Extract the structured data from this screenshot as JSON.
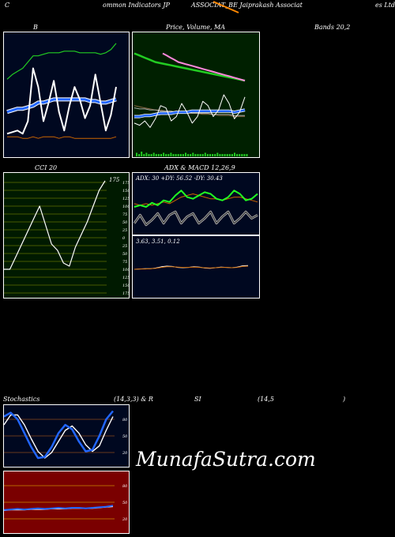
{
  "header": {
    "left": "C",
    "mid1": "ommon  Indicators JP",
    "mid2": "ASSOCIAT_BE Jaiprakash Associat",
    "right": "es Ltd."
  },
  "titles": {
    "bands_left": "B",
    "price_ma": "Price,  Volume,  MA",
    "bands_right": "Bands 20,2",
    "cci": "CCI 20",
    "adx_macd": "ADX  & MACD 12,26,9",
    "stoch_left": "Stochastics",
    "stoch_mid": "(14,3,3) & R",
    "rsi_mid": "SI",
    "rsi_params": "(14,5",
    "rsi_close": ")"
  },
  "adx_values": "ADX: 30   +DY: 56.52  -DY: 30.43",
  "macd_values": "3.63,  3.51,  0.12",
  "watermark": "MunafaSutra.com",
  "colors": {
    "panel_bg": "#000820",
    "price_bg": "#002000",
    "cci_bg": "#001a00",
    "rsi_bg": "#7a0000",
    "white": "#ffffff",
    "green": "#22cc22",
    "blue": "#2266ff",
    "orange": "#cc6600",
    "pink": "#ff88dd",
    "grid_brown": "#8a4a1a",
    "grid_olive": "#607000"
  },
  "chart_data": [
    {
      "type": "line",
      "panel": "bollinger",
      "series": [
        {
          "values": [
            10,
            11,
            12,
            10,
            18,
            52,
            40,
            18,
            30,
            44,
            24,
            12,
            28,
            40,
            32,
            20,
            28,
            48,
            30,
            12,
            22,
            40
          ]
        },
        {
          "values": [
            45,
            48,
            50,
            52,
            56,
            60,
            60,
            61,
            62,
            62,
            62,
            63,
            63,
            63,
            62,
            62,
            62,
            62,
            61,
            62,
            64,
            68
          ]
        },
        {
          "values": [
            24,
            25,
            26,
            26,
            27,
            28,
            30,
            30,
            31,
            32,
            32,
            32,
            32,
            32,
            32,
            32,
            31,
            31,
            30,
            30,
            31,
            32
          ]
        },
        {
          "values": [
            8,
            8,
            8,
            7,
            7,
            8,
            7,
            8,
            8,
            8,
            7,
            8,
            8,
            7,
            7,
            7,
            7,
            7,
            7,
            7,
            7,
            8
          ]
        }
      ]
    },
    {
      "type": "line",
      "panel": "price_ma",
      "series": [
        {
          "values": [
            88,
            86,
            84,
            82,
            80,
            79,
            78,
            77,
            76,
            75,
            74,
            73,
            72,
            71,
            70,
            69,
            68,
            67,
            66,
            65,
            64,
            63
          ]
        },
        {
          "values": [
            40,
            39,
            38,
            37,
            36,
            36,
            35,
            35,
            34,
            34,
            33,
            33,
            33,
            32,
            32,
            32,
            31,
            31,
            31,
            30,
            30,
            30
          ]
        },
        {
          "values": [
            38,
            37,
            37,
            36,
            36,
            35,
            35,
            35,
            34,
            34,
            34,
            33,
            33,
            33,
            33,
            32,
            32,
            32,
            32,
            31,
            31,
            31
          ]
        },
        {
          "values": [
            24,
            22,
            26,
            20,
            28,
            40,
            38,
            26,
            30,
            42,
            34,
            24,
            30,
            44,
            40,
            30,
            36,
            50,
            42,
            28,
            34,
            48
          ]
        },
        {
          "values": [
            30,
            30,
            31,
            31,
            32,
            33,
            33,
            33,
            34,
            34,
            34,
            35,
            35,
            35,
            35,
            35,
            35,
            35,
            35,
            34,
            35,
            36
          ]
        }
      ],
      "volume": [
        3,
        2,
        4,
        2,
        3,
        2,
        2,
        3,
        2,
        2,
        2,
        3,
        2,
        2,
        3,
        2,
        2,
        2,
        2,
        2,
        3,
        2,
        2,
        3,
        2,
        2,
        2,
        2,
        3,
        2,
        2,
        2,
        2,
        3,
        2,
        2,
        2,
        2,
        2,
        2,
        3,
        2,
        2,
        2,
        2,
        2
      ]
    },
    {
      "type": "line",
      "panel": "cci",
      "ytick_labels": [
        "175",
        "150",
        "125",
        "100",
        "75",
        "50",
        "25",
        "0",
        "25",
        "50",
        "75",
        "100",
        "125",
        "150",
        "175"
      ],
      "last_label": "175",
      "ylim": [
        -175,
        175
      ],
      "series": [
        {
          "values": [
            -100,
            -100,
            -60,
            -20,
            20,
            60,
            100,
            40,
            -20,
            -40,
            -80,
            -90,
            -30,
            10,
            50,
            100,
            150,
            180
          ]
        }
      ]
    },
    {
      "type": "line",
      "panel": "adx",
      "series": [
        {
          "values": [
            50,
            52,
            50,
            55,
            52,
            58,
            56,
            64,
            70,
            62,
            60,
            64,
            68,
            66,
            60,
            58,
            62,
            70,
            66,
            58,
            60,
            66
          ]
        },
        {
          "values": [
            54,
            52,
            54,
            52,
            54,
            56,
            54,
            58,
            62,
            64,
            66,
            64,
            62,
            60,
            60,
            58,
            60,
            62,
            62,
            60,
            58,
            56
          ]
        },
        {
          "values": [
            30,
            40,
            28,
            34,
            42,
            30,
            40,
            44,
            30,
            38,
            42,
            30,
            36,
            44,
            30,
            38,
            44,
            30,
            36,
            44,
            36,
            40
          ]
        }
      ]
    },
    {
      "type": "line",
      "panel": "macd",
      "series": [
        {
          "values": [
            0,
            0.1,
            0.2,
            0.2,
            0.4,
            0.8,
            1.0,
            0.9,
            0.6,
            0.5,
            0.6,
            0.8,
            0.7,
            0.4,
            0.3,
            0.5,
            0.7,
            0.6,
            0.5,
            0.7,
            1.1,
            1.2
          ]
        },
        {
          "values": [
            0,
            0.1,
            0.1,
            0.2,
            0.3,
            0.6,
            0.8,
            0.8,
            0.7,
            0.6,
            0.6,
            0.7,
            0.6,
            0.5,
            0.4,
            0.5,
            0.6,
            0.6,
            0.5,
            0.6,
            0.9,
            1.0
          ]
        }
      ]
    },
    {
      "type": "line",
      "panel": "stochastics",
      "ytick_labels": [
        "80",
        "50",
        "20"
      ],
      "ylim": [
        0,
        100
      ],
      "series": [
        {
          "values": [
            85,
            92,
            80,
            55,
            30,
            10,
            12,
            30,
            55,
            70,
            62,
            40,
            22,
            25,
            50,
            80,
            95
          ]
        },
        {
          "values": [
            70,
            88,
            88,
            70,
            45,
            22,
            10,
            20,
            40,
            60,
            68,
            55,
            34,
            22,
            32,
            60,
            85
          ]
        }
      ]
    },
    {
      "type": "line",
      "panel": "rsi",
      "ytick_labels": [
        "80",
        "50",
        "20"
      ],
      "ylim": [
        0,
        100
      ],
      "series": [
        {
          "values": [
            36,
            37,
            38,
            37,
            38,
            39,
            38,
            39,
            40,
            39,
            40,
            40,
            39,
            40,
            41,
            42,
            44
          ]
        },
        {
          "values": [
            35,
            36,
            36,
            36,
            37,
            37,
            37,
            38,
            38,
            38,
            39,
            39,
            39,
            39,
            40,
            41,
            42
          ]
        }
      ]
    }
  ]
}
